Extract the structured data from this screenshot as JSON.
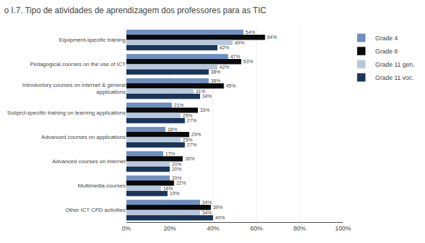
{
  "chart_data": {
    "type": "bar",
    "orientation": "horizontal",
    "title": "o I.7. Tipo de atividades de aprendizagem dos professores para as TIC",
    "categories": [
      "Equipment-specific training",
      "Pedagogical courses on the use of ICT",
      "Introductory courses on internet & general\napplications",
      "Subject-specific training on learning applications",
      "Advanced courses on applications",
      "Advanced courses on internet",
      "Multimedia courses",
      "Other ICT CPD activities"
    ],
    "series": [
      {
        "name": "Grade 4",
        "color": "#6e8fbf",
        "values": [
          54,
          47,
          38,
          21,
          18,
          17,
          20,
          34
        ],
        "value_labels": [
          "54%",
          "47%",
          "38%",
          "21%",
          "18%",
          "17%",
          "20%",
          "34%"
        ]
      },
      {
        "name": "Grade 8",
        "color": "#0a0a0a",
        "values": [
          64,
          53,
          45,
          33,
          29,
          26,
          22,
          39
        ],
        "value_labels": [
          "64%",
          "53%",
          "45%",
          "33%",
          "29%",
          "26%",
          "22%",
          "39%"
        ]
      },
      {
        "name": "Grade 11 gen.",
        "color": "#b8c8dc",
        "values": [
          49,
          42,
          31,
          25,
          25,
          20,
          16,
          34
        ],
        "value_labels": [
          "49%",
          "42%",
          "31%",
          "25%",
          "25%",
          "20%",
          "16%",
          "34%"
        ]
      },
      {
        "name": "Grade 11 voc.",
        "color": "#1a3558",
        "values": [
          42,
          38,
          34,
          27,
          27,
          20,
          19,
          40
        ],
        "value_labels": [
          "42%",
          "38%",
          "34%",
          "27%",
          "27%",
          "20%",
          "19%",
          "40%"
        ]
      }
    ],
    "xlim": [
      0,
      100
    ],
    "xticks": [
      {
        "value": 0,
        "label": "0%"
      },
      {
        "value": 20,
        "label": "20%"
      },
      {
        "value": 40,
        "label": "40%"
      },
      {
        "value": 60,
        "label": "60%"
      },
      {
        "value": 80,
        "label": "80%"
      },
      {
        "value": 100,
        "label": "100%"
      }
    ],
    "grid": true,
    "legend": "right",
    "data_labels": true
  }
}
